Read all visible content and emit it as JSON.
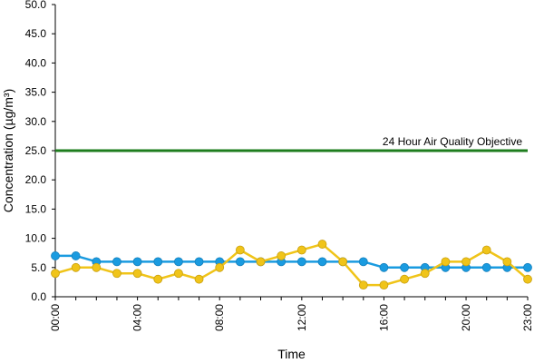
{
  "chart_data": {
    "type": "line",
    "xlabel": "Time",
    "ylabel": "Concentration (µg/m³)",
    "ylim": [
      0,
      50
    ],
    "y_ticks": [
      "0.0",
      "5.0",
      "10.0",
      "15.0",
      "20.0",
      "25.0",
      "30.0",
      "35.0",
      "40.0",
      "45.0",
      "50.0"
    ],
    "x": [
      "00:00",
      "01:00",
      "02:00",
      "03:00",
      "04:00",
      "05:00",
      "06:00",
      "07:00",
      "08:00",
      "09:00",
      "10:00",
      "11:00",
      "12:00",
      "13:00",
      "14:00",
      "15:00",
      "16:00",
      "17:00",
      "18:00",
      "19:00",
      "20:00",
      "21:00",
      "22:00",
      "23:00"
    ],
    "x_tick_labels": [
      "00:00",
      "04:00",
      "08:00",
      "12:00",
      "16:00",
      "20:00",
      "23:00"
    ],
    "grid": false,
    "reference_line": {
      "label": "24 Hour Air Quality Objective",
      "value": 25,
      "color": "#1e7d1e"
    },
    "series": [
      {
        "color": "#1a9be0",
        "values": [
          7,
          7,
          6,
          6,
          6,
          6,
          6,
          6,
          6,
          6,
          6,
          6,
          6,
          6,
          6,
          6,
          5,
          5,
          5,
          5,
          5,
          5,
          5,
          5
        ]
      },
      {
        "color": "#f0c419",
        "values": [
          4,
          5,
          5,
          4,
          4,
          3,
          4,
          3,
          5,
          8,
          6,
          7,
          8,
          9,
          6,
          2,
          2,
          3,
          4,
          6,
          6,
          8,
          6,
          3
        ]
      }
    ]
  }
}
